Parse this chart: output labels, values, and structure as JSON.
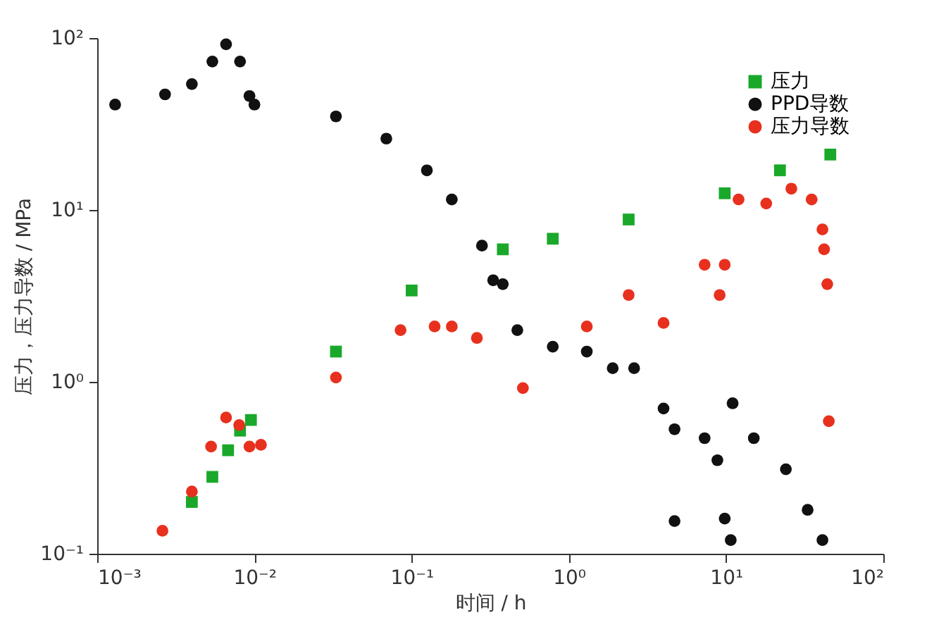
{
  "chart_data": {
    "type": "scatter",
    "xlabel": "时间 / h",
    "ylabel": "压力，压力导数 / MPa",
    "log": "xy",
    "grid": false,
    "legend": "top right",
    "xlim": [
      0.001,
      100
    ],
    "ylim": [
      0.1,
      100
    ],
    "xticks": [
      {
        "value": 0.001,
        "label": "10⁻³"
      },
      {
        "value": 0.01,
        "label": "10⁻²"
      },
      {
        "value": 0.1,
        "label": "10⁻¹"
      },
      {
        "value": 1,
        "label": "10⁰"
      },
      {
        "value": 10,
        "label": "10¹"
      },
      {
        "value": 100,
        "label": "10²"
      }
    ],
    "yticks": [
      {
        "value": 0.1,
        "label": "10⁻¹"
      },
      {
        "value": 1,
        "label": "10⁰"
      },
      {
        "value": 10,
        "label": "10¹"
      },
      {
        "value": 100,
        "label": "10²"
      }
    ],
    "series": [
      {
        "name": "压力",
        "color": "#1aa82a",
        "marker": "square",
        "x": [
          0.004,
          0.0054,
          0.0068,
          0.0081,
          0.0095,
          0.033,
          0.1,
          0.38,
          0.79,
          2.4,
          9.8,
          22,
          46
        ],
        "values": [
          0.2,
          0.28,
          0.4,
          0.52,
          0.6,
          1.5,
          3.4,
          5.9,
          6.8,
          8.8,
          12.5,
          17,
          21
        ]
      },
      {
        "name": "PPD导数",
        "color": "#111111",
        "marker": "circle",
        "x": [
          0.0013,
          0.0027,
          0.004,
          0.0054,
          0.0066,
          0.0081,
          0.0093,
          0.01,
          0.033,
          0.069,
          0.125,
          0.18,
          0.28,
          0.33,
          0.38,
          0.47,
          0.79,
          1.3,
          1.9,
          2.6,
          4.0,
          4.7,
          7.3,
          8.8,
          11,
          15,
          24,
          33,
          41,
          4.7,
          9.8,
          10.7
        ],
        "values": [
          41,
          47,
          54,
          73,
          92,
          73,
          46,
          41,
          35,
          26,
          17,
          11.5,
          6.2,
          3.9,
          3.7,
          2.0,
          1.6,
          1.5,
          1.2,
          1.2,
          0.7,
          0.53,
          0.47,
          0.35,
          0.75,
          0.47,
          0.31,
          0.18,
          0.12,
          0.155,
          0.16,
          0.12
        ]
      },
      {
        "name": "压力导数",
        "color": "#e8301e",
        "marker": "circle",
        "x": [
          0.0026,
          0.004,
          0.0053,
          0.0066,
          0.008,
          0.0093,
          0.011,
          0.033,
          0.085,
          0.14,
          0.18,
          0.26,
          0.51,
          1.3,
          2.4,
          4.0,
          7.3,
          9.1,
          9.8,
          12,
          18,
          26,
          35,
          41,
          42,
          44,
          45
        ],
        "values": [
          0.136,
          0.23,
          0.42,
          0.62,
          0.56,
          0.42,
          0.43,
          1.06,
          2.0,
          2.1,
          2.1,
          1.8,
          0.92,
          2.1,
          3.2,
          2.2,
          4.8,
          3.2,
          4.8,
          11.5,
          10.9,
          13.3,
          11.5,
          7.7,
          5.9,
          3.7,
          0.59
        ]
      }
    ]
  }
}
